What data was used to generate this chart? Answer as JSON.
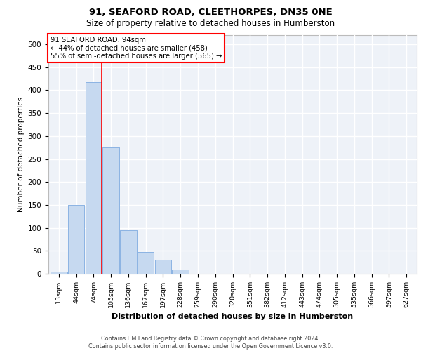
{
  "title1": "91, SEAFORD ROAD, CLEETHORPES, DN35 0NE",
  "title2": "Size of property relative to detached houses in Humberston",
  "xlabel": "Distribution of detached houses by size in Humberston",
  "ylabel": "Number of detached properties",
  "bar_labels": [
    "13sqm",
    "44sqm",
    "74sqm",
    "105sqm",
    "136sqm",
    "167sqm",
    "197sqm",
    "228sqm",
    "259sqm",
    "290sqm",
    "320sqm",
    "351sqm",
    "382sqm",
    "412sqm",
    "443sqm",
    "474sqm",
    "505sqm",
    "535sqm",
    "566sqm",
    "597sqm",
    "627sqm"
  ],
  "bar_values": [
    5,
    150,
    418,
    275,
    95,
    48,
    30,
    9,
    0,
    0,
    0,
    0,
    0,
    0,
    0,
    0,
    0,
    0,
    0,
    0,
    0
  ],
  "bar_color": "#c6d9f0",
  "bar_edge_color": "#8db4e3",
  "annotation_text": "91 SEAFORD ROAD: 94sqm\n← 44% of detached houses are smaller (458)\n55% of semi-detached houses are larger (565) →",
  "annotation_box_color": "white",
  "annotation_box_edge_color": "red",
  "vline_x_index": 2,
  "ylim": [
    0,
    520
  ],
  "yticks": [
    0,
    50,
    100,
    150,
    200,
    250,
    300,
    350,
    400,
    450,
    500
  ],
  "footer1": "Contains HM Land Registry data © Crown copyright and database right 2024.",
  "footer2": "Contains public sector information licensed under the Open Government Licence v3.0.",
  "bg_color": "#eef2f8",
  "grid_color": "white"
}
